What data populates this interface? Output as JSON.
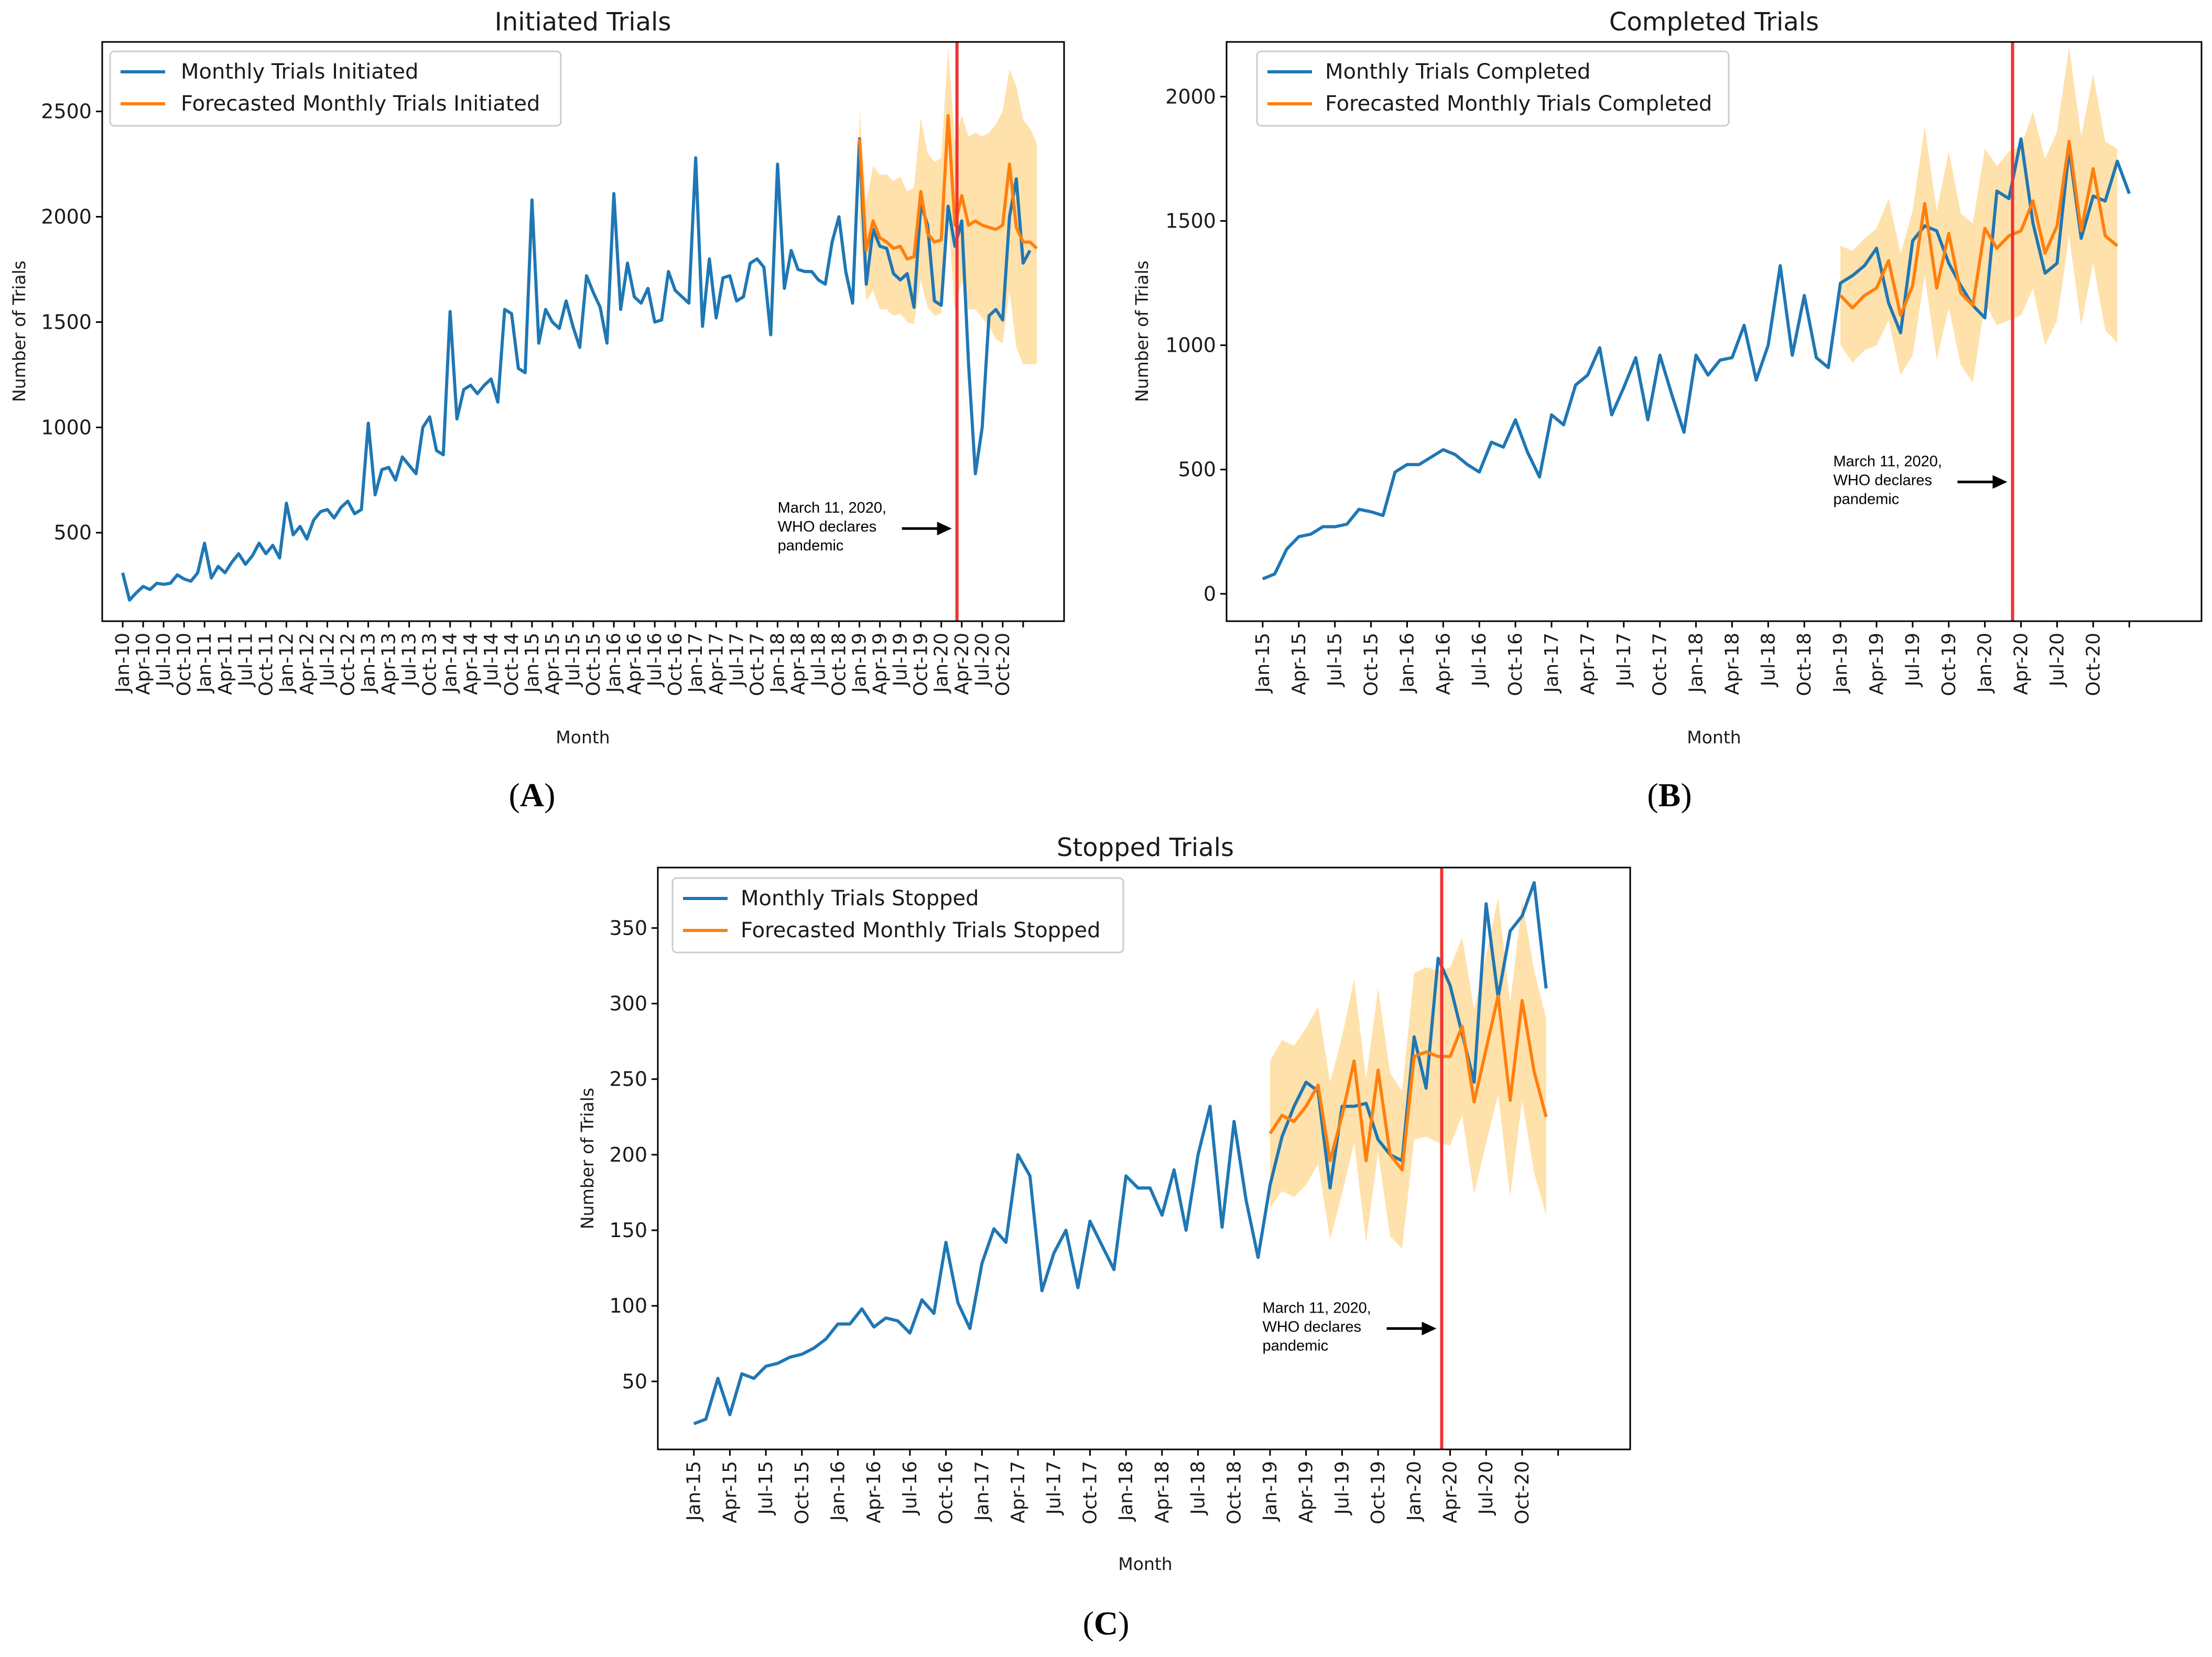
{
  "colors": {
    "actual": "#1f77b4",
    "forecast": "#ff7f0e",
    "band": "#ffc966",
    "event": "#ee3333"
  },
  "chart_data": [
    {
      "type": "line",
      "panel_label": "A",
      "title": "Initiated Trials",
      "xlabel": "Month",
      "ylabel": "Number of Trials",
      "ylim": [
        80,
        2830
      ],
      "yticks": [
        500,
        1000,
        1500,
        2000,
        2500
      ],
      "grid": false,
      "legend_position": "top-left",
      "x_start": "2010-01",
      "x_count": 135,
      "tick_step": 3,
      "tick_labels": [
        "Jan-10",
        "Apr-10",
        "Jul-10",
        "Oct-10",
        "Jan-11",
        "Apr-11",
        "Jul-11",
        "Oct-11",
        "Jan-12",
        "Apr-12",
        "Jul-12",
        "Oct-12",
        "Jan-13",
        "Apr-13",
        "Jul-13",
        "Oct-13",
        "Jan-14",
        "Apr-14",
        "Jul-14",
        "Oct-14",
        "Jan-15",
        "Apr-15",
        "Jul-15",
        "Oct-15",
        "Jan-16",
        "Apr-16",
        "Jul-16",
        "Oct-16",
        "Jan-17",
        "Apr-17",
        "Jul-17",
        "Oct-17",
        "Jan-18",
        "Apr-18",
        "Jul-18",
        "Oct-18",
        "Jan-19",
        "Apr-19",
        "Jul-19",
        "Oct-19",
        "Jan-20",
        "Apr-20",
        "Jul-20",
        "Oct-20"
      ],
      "event_month_index": 122.3,
      "series": [
        {
          "name": "Monthly Trials Initiated",
          "start_index": 0,
          "values": [
            310,
            180,
            215,
            245,
            230,
            260,
            255,
            260,
            300,
            280,
            270,
            310,
            450,
            285,
            340,
            310,
            360,
            400,
            350,
            390,
            450,
            400,
            440,
            380,
            640,
            490,
            530,
            470,
            560,
            600,
            610,
            570,
            620,
            650,
            590,
            610,
            1020,
            680,
            800,
            810,
            750,
            860,
            820,
            780,
            1000,
            1050,
            890,
            870,
            1550,
            1040,
            1180,
            1200,
            1160,
            1200,
            1230,
            1120,
            1560,
            1540,
            1280,
            1260,
            2080,
            1400,
            1560,
            1500,
            1470,
            1600,
            1480,
            1380,
            1720,
            1640,
            1570,
            1400,
            2110,
            1560,
            1780,
            1620,
            1590,
            1660,
            1500,
            1510,
            1740,
            1650,
            1620,
            1590,
            2280,
            1480,
            1800,
            1520,
            1710,
            1720,
            1600,
            1620,
            1780,
            1800,
            1760,
            1440,
            2250,
            1660,
            1840,
            1750,
            1740,
            1740,
            1700,
            1680,
            1880,
            2000,
            1740,
            1590,
            2370,
            1680,
            1940,
            1860,
            1850,
            1730,
            1700,
            1730,
            1570,
            2060,
            1960,
            1600,
            1580,
            2050,
            1860,
            1980,
            1300,
            780,
            1000,
            1530,
            1560,
            1510,
            2000,
            2180,
            1780,
            1840
          ]
        },
        {
          "name": "Forecasted Monthly Trials Initiated",
          "start_index": 108,
          "values": [
            2370,
            1840,
            1980,
            1900,
            1880,
            1850,
            1860,
            1800,
            1810,
            2120,
            1920,
            1880,
            1890,
            2480,
            1960,
            2100,
            1960,
            1980,
            1960,
            1950,
            1940,
            1960,
            2250,
            1950,
            1880,
            1880,
            1850
          ],
          "band_low": [
            1980,
            1600,
            1650,
            1560,
            1560,
            1530,
            1540,
            1500,
            1490,
            1700,
            1570,
            1530,
            1540,
            2000,
            1550,
            1700,
            1560,
            1560,
            1520,
            1480,
            1420,
            1400,
            1650,
            1380,
            1300,
            1300,
            1300
          ],
          "band_high": [
            2520,
            2070,
            2240,
            2200,
            2200,
            2170,
            2190,
            2120,
            2140,
            2470,
            2300,
            2260,
            2280,
            2800,
            2360,
            2480,
            2380,
            2400,
            2380,
            2400,
            2440,
            2500,
            2700,
            2620,
            2460,
            2420,
            2350
          ]
        }
      ],
      "annotation": {
        "lines": [
          "March 11, 2020,",
          "WHO declares",
          "pandemic"
        ],
        "arrow_y": 520
      }
    },
    {
      "type": "line",
      "panel_label": "B",
      "title": "Completed Trials",
      "xlabel": "Month",
      "ylabel": "Number of Trials",
      "ylim": [
        -110,
        2220
      ],
      "yticks": [
        0,
        500,
        1000,
        1500,
        2000
      ],
      "grid": false,
      "legend_position": "top-left",
      "x_start": "2015-01",
      "x_count": 75,
      "tick_step": 3,
      "tick_labels": [
        "Jan-15",
        "Apr-15",
        "Jul-15",
        "Oct-15",
        "Jan-16",
        "Apr-16",
        "Jul-16",
        "Oct-16",
        "Jan-17",
        "Apr-17",
        "Jul-17",
        "Oct-17",
        "Jan-18",
        "Apr-18",
        "Jul-18",
        "Oct-18",
        "Jan-19",
        "Apr-19",
        "Jul-19",
        "Oct-19",
        "Jan-20",
        "Apr-20",
        "Jul-20",
        "Oct-20"
      ],
      "event_month_index": 62.3,
      "series": [
        {
          "name": "Monthly Trials Completed",
          "start_index": 0,
          "values": [
            60,
            80,
            180,
            230,
            240,
            270,
            270,
            280,
            340,
            330,
            315,
            490,
            520,
            520,
            550,
            580,
            560,
            520,
            490,
            610,
            590,
            700,
            570,
            470,
            720,
            680,
            840,
            880,
            990,
            720,
            830,
            950,
            700,
            960,
            800,
            650,
            960,
            880,
            940,
            950,
            1080,
            860,
            1000,
            1320,
            960,
            1200,
            950,
            910,
            1250,
            1280,
            1320,
            1390,
            1170,
            1050,
            1420,
            1480,
            1460,
            1330,
            1240,
            1160,
            1110,
            1620,
            1590,
            1830,
            1490,
            1290,
            1330,
            1790,
            1430,
            1600,
            1580,
            1740,
            1610
          ]
        },
        {
          "name": "Forecasted Monthly Trials Completed",
          "start_index": 48,
          "values": [
            1200,
            1150,
            1200,
            1230,
            1340,
            1120,
            1240,
            1570,
            1230,
            1450,
            1210,
            1160,
            1470,
            1390,
            1440,
            1460,
            1580,
            1370,
            1480,
            1820,
            1460,
            1710,
            1440,
            1400
          ],
          "band_low": [
            1000,
            930,
            980,
            1000,
            1100,
            880,
            960,
            1280,
            940,
            1150,
            920,
            850,
            1170,
            1080,
            1100,
            1120,
            1230,
            1000,
            1100,
            1440,
            1080,
            1330,
            1060,
            1010
          ],
          "band_high": [
            1400,
            1380,
            1430,
            1470,
            1590,
            1370,
            1540,
            1880,
            1540,
            1780,
            1530,
            1490,
            1790,
            1720,
            1780,
            1800,
            1940,
            1750,
            1860,
            2200,
            1840,
            2090,
            1820,
            1790
          ]
        }
      ],
      "annotation": {
        "lines": [
          "March 11, 2020,",
          "WHO declares",
          "pandemic"
        ],
        "arrow_y": 450
      }
    },
    {
      "type": "line",
      "panel_label": "C",
      "title": "Stopped Trials",
      "xlabel": "Month",
      "ylabel": "Number of Trials",
      "ylim": [
        5,
        390
      ],
      "yticks": [
        50,
        100,
        150,
        200,
        250,
        300,
        350
      ],
      "grid": false,
      "legend_position": "top-left",
      "x_start": "2015-01",
      "x_count": 75,
      "tick_step": 3,
      "tick_labels": [
        "Jan-15",
        "Apr-15",
        "Jul-15",
        "Oct-15",
        "Jan-16",
        "Apr-16",
        "Jul-16",
        "Oct-16",
        "Jan-17",
        "Apr-17",
        "Jul-17",
        "Oct-17",
        "Jan-18",
        "Apr-18",
        "Jul-18",
        "Oct-18",
        "Jan-19",
        "Apr-19",
        "Jul-19",
        "Oct-19",
        "Jan-20",
        "Apr-20",
        "Jul-20",
        "Oct-20"
      ],
      "event_month_index": 62.3,
      "series": [
        {
          "name": "Monthly Trials Stopped",
          "start_index": 0,
          "values": [
            22,
            25,
            52,
            28,
            55,
            52,
            60,
            62,
            66,
            68,
            72,
            78,
            88,
            88,
            98,
            86,
            92,
            90,
            82,
            104,
            95,
            142,
            102,
            85,
            128,
            151,
            142,
            200,
            186,
            110,
            135,
            150,
            112,
            156,
            140,
            124,
            186,
            178,
            178,
            160,
            190,
            150,
            200,
            232,
            152,
            222,
            170,
            132,
            180,
            212,
            232,
            248,
            242,
            178,
            232,
            232,
            234,
            210,
            200,
            196,
            278,
            244,
            330,
            312,
            280,
            248,
            366,
            304,
            348,
            358,
            380,
            310
          ]
        },
        {
          "name": "Forecasted Monthly Trials Stopped",
          "start_index": 48,
          "values": [
            214,
            226,
            222,
            232,
            246,
            196,
            226,
            262,
            196,
            256,
            200,
            190,
            265,
            268,
            265,
            265,
            285,
            235,
            270,
            305,
            236,
            302,
            255,
            225
          ],
          "band_low": [
            165,
            176,
            172,
            180,
            194,
            144,
            174,
            208,
            142,
            202,
            146,
            138,
            210,
            212,
            208,
            206,
            226,
            174,
            208,
            240,
            172,
            236,
            188,
            160
          ],
          "band_high": [
            262,
            276,
            272,
            284,
            298,
            248,
            278,
            316,
            250,
            310,
            254,
            242,
            320,
            324,
            322,
            324,
            344,
            296,
            332,
            370,
            300,
            368,
            322,
            290
          ]
        }
      ],
      "annotation": {
        "lines": [
          "March 11, 2020,",
          "WHO declares",
          "pandemic"
        ],
        "arrow_y": 85
      }
    }
  ]
}
